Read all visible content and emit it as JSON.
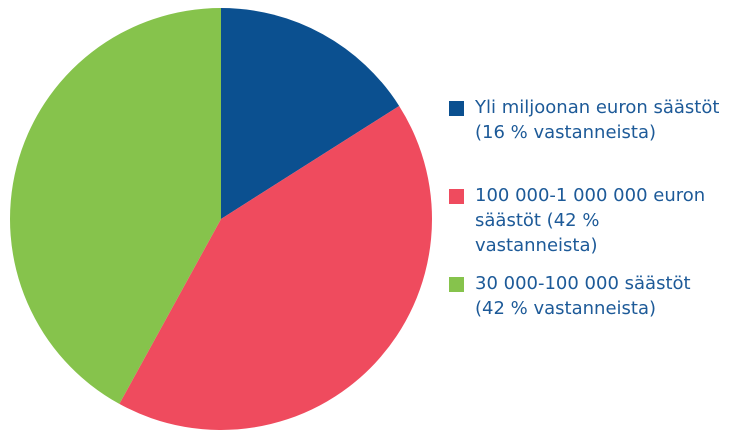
{
  "chart_data": {
    "type": "pie",
    "categories": [
      "Yli miljoonan euron säästöt (16 % vastanneista)",
      "100 000-1 000 000 euron säästöt (42 % vastanneista)",
      "30 000-100 000 säästöt (42 % vastanneista)"
    ],
    "values": [
      16,
      42,
      42
    ],
    "colors": [
      "#0b5090",
      "#ef4b5e",
      "#86c34c"
    ],
    "legend": "right"
  }
}
